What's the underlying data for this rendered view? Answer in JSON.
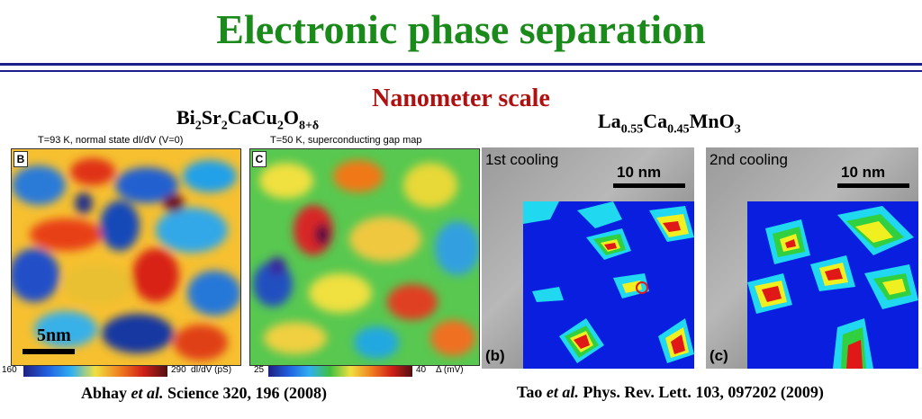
{
  "title": "Electronic phase separation",
  "subtitle": "Nanometer scale",
  "left": {
    "formula": {
      "p1": "Bi",
      "s1": "2",
      "p2": "Sr",
      "s2": "2",
      "p3": "CaCu",
      "s3": "2",
      "p4": "O",
      "s4": "8+δ"
    },
    "panel_b": {
      "letter": "B",
      "caption": "T=93 K, normal state dI/dV (V=0)",
      "scale": "5nm"
    },
    "panel_c": {
      "letter": "C",
      "caption": "T=50 K, superconducting gap map"
    },
    "colorbar_b": {
      "min": "160",
      "max": "290",
      "unit": "dI/dV (pS)"
    },
    "colorbar_c": {
      "min": "25",
      "max": "40",
      "unit": "Δ (mV)"
    },
    "citation": {
      "authors": "Abhay",
      "etal": "et al.",
      "ref": "Science 320, 196 (2008)"
    }
  },
  "right": {
    "formula": {
      "p1": "La",
      "s1": "0.55",
      "p2": "Ca",
      "s2": "0.45",
      "p3": "MnO",
      "s3": "3"
    },
    "panel_b": {
      "label": "1st cooling",
      "scale": "10 nm",
      "letter": "(b)"
    },
    "panel_c": {
      "label": "2nd cooling",
      "scale": "10 nm",
      "letter": "(c)"
    },
    "citation": {
      "authors": "Tao",
      "etal": "et al.",
      "ref": "Phys. Rev. Lett. 103, 097202 (2009)"
    }
  },
  "colors": {
    "title": "#1a8a1a",
    "subtitle": "#b01010",
    "rule": "#1a1f8c",
    "map_blue": "#0a1ee0",
    "map_cyan": "#20d8f0",
    "map_green": "#30d040",
    "map_yellow": "#f0f020",
    "map_red": "#e01818"
  }
}
